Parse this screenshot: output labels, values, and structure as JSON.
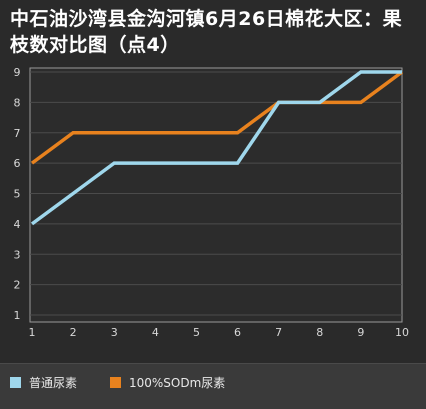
{
  "chart_data": {
    "type": "line",
    "title": "中石油沙湾县金沟河镇6月26日棉花大区：果枝数对比图（点4）",
    "x": [
      1,
      2,
      3,
      4,
      5,
      6,
      7,
      8,
      9,
      10
    ],
    "xlim": [
      1,
      10
    ],
    "ylim": [
      1,
      9
    ],
    "yticks": [
      1,
      2,
      3,
      4,
      5,
      6,
      7,
      8,
      9
    ],
    "grid": true,
    "legend_position": "bottom",
    "series": [
      {
        "name": "普通尿素",
        "color": "#9fd7ec",
        "values": [
          4,
          5,
          6,
          6,
          6,
          6,
          8,
          8,
          9,
          9
        ]
      },
      {
        "name": "100%SODm尿素",
        "color": "#e8821e",
        "values": [
          6,
          7,
          7,
          7,
          7,
          7,
          8,
          8,
          8,
          9
        ]
      }
    ]
  }
}
